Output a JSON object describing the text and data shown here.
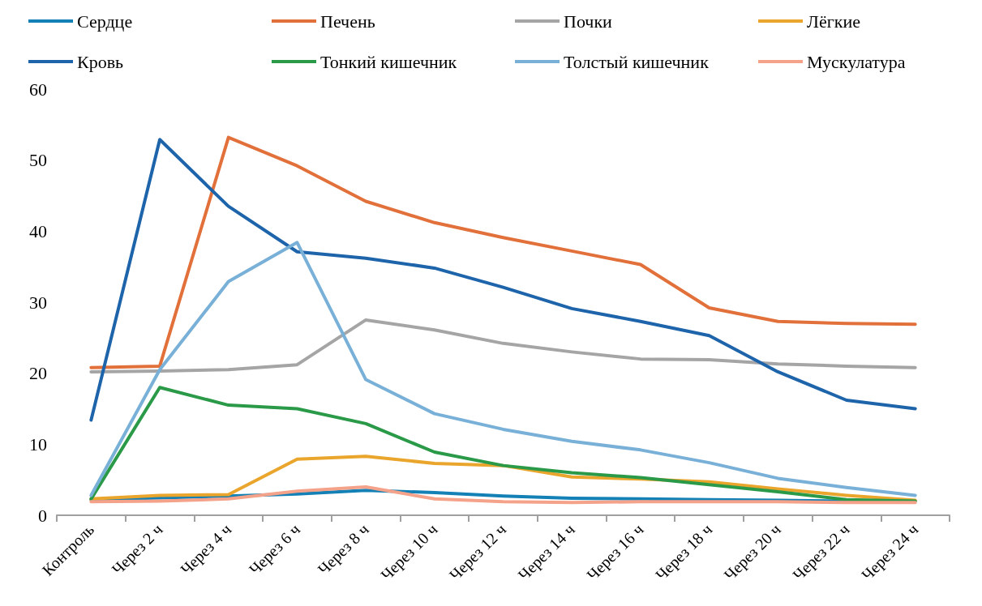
{
  "chart_data": {
    "type": "line",
    "categories": [
      "Контроль",
      "Через 2 ч",
      "Через 4 ч",
      "Через 6 ч",
      "Через 8 ч",
      "Через 10 ч",
      "Через 12 ч",
      "Через 14 ч",
      "Через 16 ч",
      "Через 18 ч",
      "Через 20 ч",
      "Через 22 ч",
      "Через 24 ч"
    ],
    "series": [
      {
        "name": "Сердце",
        "color": "#1380b6",
        "values": [
          2.2,
          null,
          2.7,
          3.0,
          3.5,
          3.2,
          2.7,
          2.4,
          2.3,
          2.2,
          2.1,
          2.0,
          2.0
        ]
      },
      {
        "name": "Печень",
        "color": "#e2703a",
        "values": [
          20.8,
          21.0,
          53.2,
          49.2,
          44.2,
          41.2,
          39.1,
          37.2,
          35.3,
          29.2,
          27.3,
          27.0,
          26.9
        ]
      },
      {
        "name": "Почки",
        "color": "#a5a5a5",
        "values": [
          20.2,
          20.3,
          20.5,
          21.2,
          27.5,
          26.1,
          24.2,
          23.0,
          22.0,
          21.9,
          21.3,
          21.0,
          20.8
        ]
      },
      {
        "name": "Лёгкие",
        "color": "#eaa52c",
        "values": [
          2.3,
          2.8,
          2.9,
          7.9,
          8.3,
          7.3,
          7.0,
          5.4,
          5.1,
          4.7,
          3.7,
          2.8,
          2.1
        ]
      },
      {
        "name": "Кровь",
        "color": "#1d64aa",
        "values": [
          13.4,
          52.9,
          43.5,
          37.1,
          36.2,
          34.8,
          32.1,
          29.1,
          27.3,
          25.3,
          20.2,
          16.2,
          15.0
        ]
      },
      {
        "name": "Тонкий кишечник",
        "color": "#2a9a48",
        "values": [
          2.3,
          18.0,
          15.5,
          15.0,
          12.9,
          8.9,
          7.0,
          6.0,
          5.3,
          4.3,
          3.3,
          2.2,
          2.0
        ]
      },
      {
        "name": "Толстый кишечник",
        "color": "#78b0d8",
        "values": [
          2.8,
          20.5,
          32.9,
          38.4,
          19.1,
          14.3,
          12.1,
          10.4,
          9.2,
          7.4,
          5.2,
          3.9,
          2.8
        ]
      },
      {
        "name": "Мускулатура",
        "color": "#f5a28a",
        "values": [
          1.9,
          2.0,
          2.3,
          3.4,
          4.0,
          2.3,
          1.9,
          1.8,
          1.9,
          1.9,
          1.9,
          1.8,
          1.8
        ]
      }
    ],
    "ylim": [
      0,
      60
    ],
    "yticks": [
      0,
      10,
      20,
      30,
      40,
      50,
      60
    ],
    "grid": false,
    "legend": "top",
    "marker": "none",
    "line_style": "solid"
  }
}
